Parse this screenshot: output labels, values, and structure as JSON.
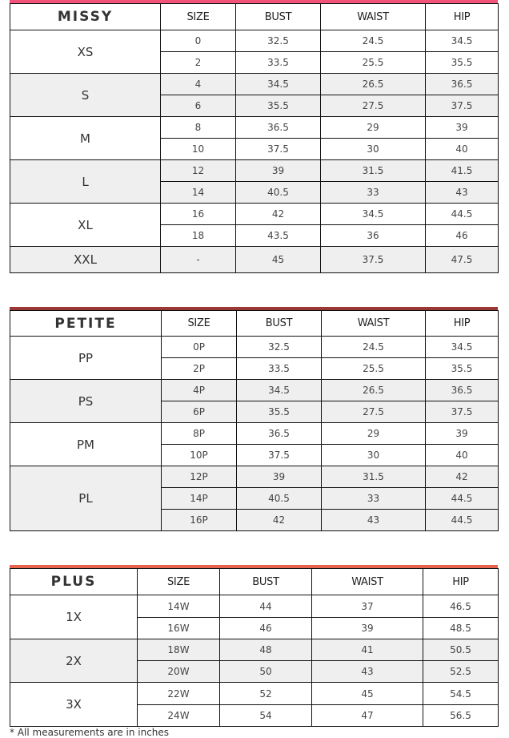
{
  "charts": [
    {
      "title": "MISSY",
      "bar_color": "#f25379",
      "headers": [
        "SIZE",
        "BUST",
        "WAIST",
        "HIP"
      ],
      "groups": [
        {
          "label": "XS",
          "rows": [
            [
              "0",
              "32.5",
              "24.5",
              "34.5"
            ],
            [
              "2",
              "33.5",
              "25.5",
              "35.5"
            ]
          ]
        },
        {
          "label": "S",
          "rows": [
            [
              "4",
              "34.5",
              "26.5",
              "36.5"
            ],
            [
              "6",
              "35.5",
              "27.5",
              "37.5"
            ]
          ]
        },
        {
          "label": "M",
          "rows": [
            [
              "8",
              "36.5",
              "29",
              "39"
            ],
            [
              "10",
              "37.5",
              "30",
              "40"
            ]
          ]
        },
        {
          "label": "L",
          "rows": [
            [
              "12",
              "39",
              "31.5",
              "41.5"
            ],
            [
              "14",
              "40.5",
              "33",
              "43"
            ]
          ]
        },
        {
          "label": "XL",
          "rows": [
            [
              "16",
              "42",
              "34.5",
              "44.5"
            ],
            [
              "18",
              "43.5",
              "36",
              "46"
            ]
          ]
        },
        {
          "label": "XXL",
          "rows": [
            [
              "-",
              "45",
              "37.5",
              "47.5"
            ]
          ]
        }
      ]
    },
    {
      "title": "PETITE",
      "bar_color": "#9b3835",
      "headers": [
        "SIZE",
        "BUST",
        "WAIST",
        "HIP"
      ],
      "groups": [
        {
          "label": "PP",
          "rows": [
            [
              "0P",
              "32.5",
              "24.5",
              "34.5"
            ],
            [
              "2P",
              "33.5",
              "25.5",
              "35.5"
            ]
          ]
        },
        {
          "label": "PS",
          "rows": [
            [
              "4P",
              "34.5",
              "26.5",
              "36.5"
            ],
            [
              "6P",
              "35.5",
              "27.5",
              "37.5"
            ]
          ]
        },
        {
          "label": "PM",
          "rows": [
            [
              "8P",
              "36.5",
              "29",
              "39"
            ],
            [
              "10P",
              "37.5",
              "30",
              "40"
            ]
          ]
        },
        {
          "label": "PL",
          "rows": [
            [
              "12P",
              "39",
              "31.5",
              "42"
            ],
            [
              "14P",
              "40.5",
              "33",
              "44.5"
            ],
            [
              "16P",
              "42",
              "43",
              "44.5"
            ]
          ]
        }
      ]
    },
    {
      "title": "PLUS",
      "bar_color": "#e5644b",
      "headers": [
        "SIZE",
        "BUST",
        "WAIST",
        "HIP"
      ],
      "groups": [
        {
          "label": "1X",
          "rows": [
            [
              "14W",
              "44",
              "37",
              "46.5"
            ],
            [
              "16W",
              "46",
              "39",
              "48.5"
            ]
          ]
        },
        {
          "label": "2X",
          "rows": [
            [
              "18W",
              "48",
              "41",
              "50.5"
            ],
            [
              "20W",
              "50",
              "43",
              "52.5"
            ]
          ]
        },
        {
          "label": "3X",
          "rows": [
            [
              "22W",
              "52",
              "45",
              "54.5"
            ],
            [
              "24W",
              "54",
              "47",
              "56.5"
            ]
          ]
        }
      ]
    }
  ],
  "footnote": "* All measurements are in inches"
}
